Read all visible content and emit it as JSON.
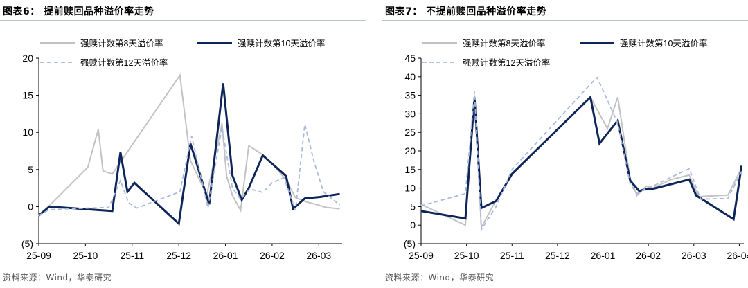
{
  "charts": [
    {
      "title": "图表6：  提前赎回品种溢价率走势",
      "source": "资料来源：Wind，华泰研究"
    },
    {
      "title": "图表7：  不提前赎回品种溢价率走势",
      "source": "资料来源：Wind，华泰研究"
    }
  ],
  "chart_data": [
    {
      "type": "line",
      "ylim": [
        -5,
        20
      ],
      "yticks": [
        -5,
        0,
        5,
        10,
        15,
        20
      ],
      "ytick_labels": [
        "(5)",
        "0",
        "5",
        "10",
        "15",
        "20"
      ],
      "xlim": [
        0,
        13
      ],
      "xticks": [
        0,
        2,
        4,
        6,
        8,
        10,
        12
      ],
      "xtick_labels": [
        "25-09",
        "25-10",
        "25-11",
        "25-12",
        "26-01",
        "26-02",
        "26-03"
      ],
      "legend": "top",
      "colors": {
        "s8": "#c2c2c2",
        "s10": "#0e2559",
        "s12": "#a9b9dc"
      },
      "series": [
        {
          "name": "强赎计数第8天溢价率",
          "x": [
            0,
            2.1,
            2.55,
            2.75,
            3.15,
            6.05,
            6.5,
            7.2,
            7.85,
            8.05,
            8.3,
            8.65,
            9.0,
            9.6,
            10.05,
            10.6,
            11.0,
            11.5,
            12.0,
            12.3,
            12.9
          ],
          "y": [
            -1.3,
            5.3,
            10.4,
            4.8,
            4.4,
            17.7,
            6.2,
            1.5,
            11.2,
            4.1,
            1.5,
            -0.5,
            8.2,
            7.0,
            5.6,
            3.6,
            1.2,
            0.6,
            0.2,
            -0.1,
            -0.3
          ]
        },
        {
          "name": "强赎计数第10天溢价率",
          "x": [
            0,
            0.45,
            3.15,
            3.5,
            3.8,
            4.1,
            6.0,
            6.5,
            7.3,
            7.9,
            8.3,
            8.7,
            9.0,
            9.6,
            10.1,
            10.6,
            10.9,
            11.4,
            12.05,
            12.9
          ],
          "y": [
            -1.2,
            0.0,
            -0.6,
            7.3,
            2.0,
            3.2,
            -2.3,
            8.5,
            0.3,
            16.6,
            4.2,
            0.9,
            2.5,
            6.9,
            5.5,
            4.1,
            -0.3,
            1.1,
            1.3,
            1.7
          ]
        },
        {
          "name": "强赎计数第12天溢价率",
          "x": [
            0,
            0.45,
            3.0,
            3.5,
            3.85,
            4.2,
            6.05,
            6.55,
            7.25,
            7.85,
            8.3,
            8.65,
            9.05,
            9.6,
            10.0,
            10.5,
            11.0,
            11.4,
            11.8,
            12.2,
            12.9
          ],
          "y": [
            -1.2,
            -0.4,
            -0.1,
            3.5,
            0.5,
            -0.2,
            2.0,
            9.5,
            -0.2,
            10.7,
            2.5,
            1.0,
            2.4,
            1.9,
            3.2,
            3.9,
            -0.5,
            11.1,
            6.0,
            2.0,
            0.2
          ]
        }
      ]
    },
    {
      "type": "line",
      "ylim": [
        -5,
        45
      ],
      "yticks": [
        -5,
        0,
        5,
        10,
        15,
        20,
        25,
        30,
        35,
        40,
        45
      ],
      "ytick_labels": [
        "(5)",
        "0",
        "5",
        "10",
        "15",
        "20",
        "25",
        "30",
        "35",
        "40",
        "45"
      ],
      "xlim": [
        0,
        14.2
      ],
      "xticks": [
        0,
        2,
        4,
        6,
        8,
        10,
        12,
        14
      ],
      "xtick_labels": [
        "25-09",
        "25-10",
        "25-11",
        "25-12",
        "26-01",
        "26-02",
        "26-03",
        "26-04"
      ],
      "legend": "top",
      "colors": {
        "s8": "#c2c2c2",
        "s10": "#0e2559",
        "s12": "#a9b9dc"
      },
      "series": [
        {
          "name": "强赎计数第8天溢价率",
          "x": [
            0,
            1.95,
            2.35,
            2.65,
            3.3,
            4.0,
            7.45,
            8.2,
            8.65,
            9.2,
            9.5,
            9.9,
            10.2,
            11.0,
            11.8,
            12.2,
            13.5,
            14.1
          ],
          "y": [
            5.6,
            0.0,
            35.0,
            -0.6,
            6.7,
            14.0,
            34.5,
            26.0,
            34.5,
            12.5,
            8.0,
            10.5,
            10.0,
            12.3,
            13.5,
            7.7,
            8.1,
            15.4
          ]
        },
        {
          "name": "强赎计数第10天溢价率",
          "x": [
            0,
            1.95,
            2.35,
            2.65,
            3.3,
            4.0,
            7.45,
            7.85,
            8.65,
            9.2,
            9.6,
            9.9,
            10.2,
            11.8,
            12.1,
            13.75,
            14.1
          ],
          "y": [
            3.8,
            1.8,
            34.5,
            4.6,
            6.5,
            13.8,
            34.5,
            22.0,
            28.2,
            12.0,
            9.2,
            9.8,
            9.8,
            12.3,
            8.0,
            1.6,
            16.0
          ]
        },
        {
          "name": "强赎计数第12天溢价率",
          "x": [
            0,
            1.95,
            2.35,
            2.65,
            3.3,
            4.0,
            7.45,
            7.75,
            8.65,
            9.2,
            9.5,
            9.9,
            10.2,
            11.2,
            11.8,
            12.3,
            13.5,
            14.1
          ],
          "y": [
            5.2,
            8.5,
            36.0,
            -1.2,
            5.0,
            15.0,
            38.0,
            39.8,
            27.5,
            11.0,
            8.5,
            10.0,
            10.5,
            13.5,
            15.2,
            7.0,
            7.2,
            14.5
          ]
        }
      ]
    }
  ]
}
